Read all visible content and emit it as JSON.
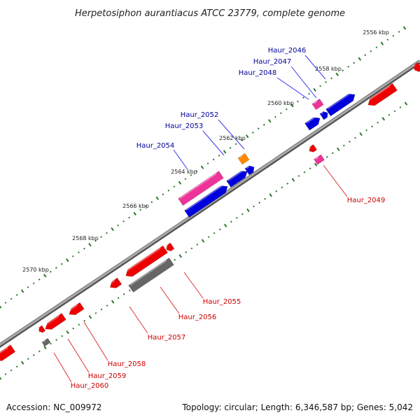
{
  "title": "Herpetosiphon aurantiacus ATCC 23779, complete genome",
  "footer": {
    "accession": "Accession: NC_009972",
    "topology": "Topology: circular; Length: 6,346,587 bp; Genes: 5,042"
  },
  "colors": {
    "backbone": "#8a8a8a",
    "tick": "#2a7a2a",
    "label_forward": "#000099",
    "label_reverse": "#cc0000",
    "leader": "#3a3aee",
    "leader_reverse": "#dd3333",
    "gene_blue": "#0000dd",
    "gene_pink": "#ee3399",
    "gene_orange": "#ff8800",
    "gene_red": "#ee0000",
    "gene_gray": "#666666"
  },
  "kbp_ticks": [
    "2556 kbp",
    "2558 kbp",
    "2560 kbp",
    "2562 kbp",
    "2564 kbp",
    "2566 kbp",
    "2568 kbp",
    "2570 kbp"
  ],
  "genes_forward": [
    "Haur_2046",
    "Haur_2047",
    "Haur_2048",
    "Haur_2052",
    "Haur_2053",
    "Haur_2054"
  ],
  "genes_reverse": [
    "Haur_2049",
    "Haur_2055",
    "Haur_2056",
    "Haur_2057",
    "Haur_2058",
    "Haur_2059",
    "Haur_2060"
  ]
}
